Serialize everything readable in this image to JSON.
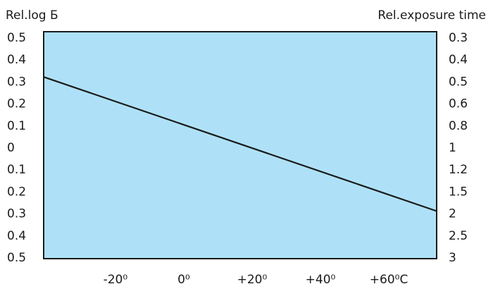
{
  "chart_data": {
    "type": "line",
    "left_axis_title": "Rel.log Б",
    "right_axis_title": "Rel.exposure time",
    "left_tick_labels": [
      "0.5",
      "0.4",
      "0.3",
      "0.2",
      "0.1",
      "0",
      "0.1",
      "0.2",
      "0.3",
      "0.4",
      "0.5"
    ],
    "right_tick_labels": [
      "0.3",
      "0.4",
      "0.5",
      "0.6",
      "0.8",
      "1",
      "1.2",
      "1.5",
      "2",
      "2.5",
      "3"
    ],
    "x_tick_labels": [
      {
        "label": "-20⁰",
        "value": -20
      },
      {
        "label": "0⁰",
        "value": 0
      },
      {
        "label": "+20⁰",
        "value": 20
      },
      {
        "label": "+40⁰",
        "value": 40
      },
      {
        "label": "+60⁰C",
        "value": 60
      }
    ],
    "x_range": [
      -41,
      74
    ],
    "y_range": [
      -0.5,
      0.5
    ],
    "y_note": "signed: upper half positive, lower half negative",
    "series": [
      {
        "points": [
          {
            "x": -41,
            "y": 0.32
          },
          {
            "x": 74,
            "y": -0.29
          }
        ]
      }
    ],
    "plot_fill_color": "#aee1f7",
    "line_color": "#1a1a1a",
    "grid": false
  }
}
